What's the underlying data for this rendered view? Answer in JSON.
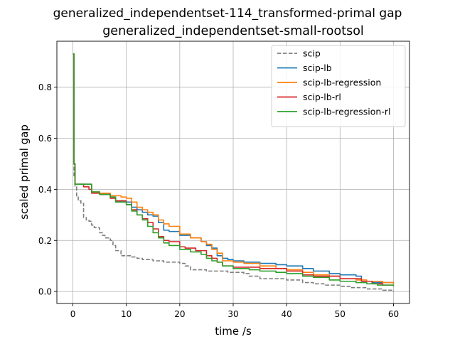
{
  "figure": {
    "suptitle": "generalized_independentset-114_transformed-primal gap"
  },
  "chart_data": {
    "type": "line",
    "title": "generalized_independentset-small-rootsol",
    "xlabel": "time /s",
    "ylabel": "scaled primal gap",
    "xlim": [
      -3.0,
      63.0
    ],
    "ylim": [
      -0.047,
      0.98
    ],
    "xticks": [
      0,
      10,
      20,
      30,
      40,
      50,
      60
    ],
    "xtick_labels": [
      "0",
      "10",
      "20",
      "30",
      "40",
      "50",
      "60"
    ],
    "yticks": [
      0.0,
      0.2,
      0.4,
      0.6,
      0.8
    ],
    "ytick_labels": [
      "0.0",
      "0.2",
      "0.4",
      "0.6",
      "0.8"
    ],
    "grid": true,
    "legend_position": "upper right",
    "series": [
      {
        "name": "scip",
        "color": "#7f7f7f",
        "dashed": true,
        "points": [
          [
            0,
            0.93
          ],
          [
            0.2,
            0.45
          ],
          [
            0.4,
            0.41
          ],
          [
            0.7,
            0.37
          ],
          [
            1,
            0.355
          ],
          [
            1.5,
            0.345
          ],
          [
            2,
            0.29
          ],
          [
            2.5,
            0.28
          ],
          [
            3,
            0.275
          ],
          [
            3.5,
            0.26
          ],
          [
            4,
            0.25
          ],
          [
            5,
            0.23
          ],
          [
            5.5,
            0.22
          ],
          [
            6,
            0.21
          ],
          [
            7,
            0.2
          ],
          [
            7.5,
            0.18
          ],
          [
            8,
            0.16
          ],
          [
            9,
            0.14
          ],
          [
            10,
            0.14
          ],
          [
            11,
            0.135
          ],
          [
            12,
            0.13
          ],
          [
            13,
            0.125
          ],
          [
            15,
            0.12
          ],
          [
            17,
            0.115
          ],
          [
            20,
            0.11
          ],
          [
            21,
            0.1
          ],
          [
            22,
            0.085
          ],
          [
            25,
            0.08
          ],
          [
            29,
            0.075
          ],
          [
            32,
            0.07
          ],
          [
            33,
            0.06
          ],
          [
            35,
            0.05
          ],
          [
            40,
            0.045
          ],
          [
            43,
            0.035
          ],
          [
            45,
            0.03
          ],
          [
            47,
            0.025
          ],
          [
            50,
            0.02
          ],
          [
            52,
            0.015
          ],
          [
            55,
            0.01
          ],
          [
            58,
            0.005
          ],
          [
            60,
            0.0
          ]
        ]
      },
      {
        "name": "scip-lb",
        "color": "#1f77b4",
        "dashed": false,
        "points": [
          [
            0,
            0.93
          ],
          [
            0.2,
            0.5
          ],
          [
            0.4,
            0.42
          ],
          [
            1,
            0.42
          ],
          [
            3,
            0.42
          ],
          [
            3.5,
            0.39
          ],
          [
            5,
            0.38
          ],
          [
            7,
            0.37
          ],
          [
            8,
            0.355
          ],
          [
            10,
            0.35
          ],
          [
            11,
            0.33
          ],
          [
            12,
            0.32
          ],
          [
            13,
            0.31
          ],
          [
            14,
            0.3
          ],
          [
            15,
            0.295
          ],
          [
            16,
            0.27
          ],
          [
            17,
            0.24
          ],
          [
            18,
            0.235
          ],
          [
            20,
            0.22
          ],
          [
            22,
            0.21
          ],
          [
            24,
            0.195
          ],
          [
            25,
            0.18
          ],
          [
            26,
            0.17
          ],
          [
            27,
            0.14
          ],
          [
            28,
            0.13
          ],
          [
            29,
            0.125
          ],
          [
            30,
            0.12
          ],
          [
            32,
            0.115
          ],
          [
            35,
            0.11
          ],
          [
            38,
            0.105
          ],
          [
            40,
            0.1
          ],
          [
            43,
            0.09
          ],
          [
            45,
            0.08
          ],
          [
            48,
            0.07
          ],
          [
            50,
            0.065
          ],
          [
            53,
            0.06
          ],
          [
            54,
            0.04
          ],
          [
            56,
            0.035
          ],
          [
            60,
            0.03
          ]
        ]
      },
      {
        "name": "scip-lb-regression",
        "color": "#ff7f0e",
        "dashed": false,
        "points": [
          [
            0,
            0.93
          ],
          [
            0.2,
            0.5
          ],
          [
            0.4,
            0.42
          ],
          [
            1,
            0.42
          ],
          [
            3,
            0.42
          ],
          [
            3.5,
            0.39
          ],
          [
            5,
            0.385
          ],
          [
            7,
            0.375
          ],
          [
            9,
            0.37
          ],
          [
            10,
            0.365
          ],
          [
            11,
            0.35
          ],
          [
            12,
            0.33
          ],
          [
            13,
            0.32
          ],
          [
            14,
            0.31
          ],
          [
            15,
            0.3
          ],
          [
            16,
            0.28
          ],
          [
            17,
            0.265
          ],
          [
            18,
            0.255
          ],
          [
            20,
            0.225
          ],
          [
            22,
            0.21
          ],
          [
            24,
            0.195
          ],
          [
            25,
            0.185
          ],
          [
            26,
            0.165
          ],
          [
            27,
            0.15
          ],
          [
            28,
            0.12
          ],
          [
            30,
            0.115
          ],
          [
            32,
            0.11
          ],
          [
            35,
            0.1
          ],
          [
            38,
            0.09
          ],
          [
            40,
            0.085
          ],
          [
            43,
            0.075
          ],
          [
            45,
            0.065
          ],
          [
            48,
            0.06
          ],
          [
            50,
            0.05
          ],
          [
            53,
            0.045
          ],
          [
            55,
            0.04
          ],
          [
            58,
            0.035
          ],
          [
            60,
            0.03
          ]
        ]
      },
      {
        "name": "scip-lb-rl",
        "color": "#d62728",
        "dashed": false,
        "points": [
          [
            0,
            0.93
          ],
          [
            0.2,
            0.5
          ],
          [
            0.4,
            0.42
          ],
          [
            1,
            0.42
          ],
          [
            2,
            0.41
          ],
          [
            3,
            0.4
          ],
          [
            3.5,
            0.385
          ],
          [
            5,
            0.38
          ],
          [
            7,
            0.365
          ],
          [
            8,
            0.355
          ],
          [
            10,
            0.34
          ],
          [
            11,
            0.32
          ],
          [
            12,
            0.3
          ],
          [
            13,
            0.285
          ],
          [
            14,
            0.27
          ],
          [
            15,
            0.245
          ],
          [
            16,
            0.215
          ],
          [
            17,
            0.2
          ],
          [
            18,
            0.195
          ],
          [
            20,
            0.175
          ],
          [
            21,
            0.17
          ],
          [
            23,
            0.16
          ],
          [
            25,
            0.14
          ],
          [
            26,
            0.13
          ],
          [
            27,
            0.115
          ],
          [
            28,
            0.1
          ],
          [
            30,
            0.095
          ],
          [
            35,
            0.09
          ],
          [
            40,
            0.08
          ],
          [
            43,
            0.065
          ],
          [
            45,
            0.06
          ],
          [
            50,
            0.05
          ],
          [
            54,
            0.04
          ],
          [
            56,
            0.03
          ],
          [
            58,
            0.025
          ],
          [
            60,
            0.025
          ]
        ]
      },
      {
        "name": "scip-lb-regression-rl",
        "color": "#2ca02c",
        "dashed": false,
        "points": [
          [
            0,
            0.93
          ],
          [
            0.2,
            0.5
          ],
          [
            0.4,
            0.42
          ],
          [
            1,
            0.42
          ],
          [
            3,
            0.42
          ],
          [
            3.5,
            0.39
          ],
          [
            5,
            0.38
          ],
          [
            7,
            0.37
          ],
          [
            8,
            0.35
          ],
          [
            10,
            0.34
          ],
          [
            11,
            0.315
          ],
          [
            12,
            0.3
          ],
          [
            13,
            0.28
          ],
          [
            14,
            0.255
          ],
          [
            15,
            0.23
          ],
          [
            16,
            0.21
          ],
          [
            17,
            0.19
          ],
          [
            18,
            0.18
          ],
          [
            20,
            0.165
          ],
          [
            22,
            0.155
          ],
          [
            24,
            0.145
          ],
          [
            25,
            0.13
          ],
          [
            26,
            0.12
          ],
          [
            27,
            0.115
          ],
          [
            28,
            0.1
          ],
          [
            30,
            0.09
          ],
          [
            33,
            0.085
          ],
          [
            35,
            0.08
          ],
          [
            38,
            0.075
          ],
          [
            40,
            0.07
          ],
          [
            43,
            0.06
          ],
          [
            45,
            0.055
          ],
          [
            48,
            0.045
          ],
          [
            50,
            0.04
          ],
          [
            53,
            0.035
          ],
          [
            55,
            0.03
          ],
          [
            57,
            0.025
          ],
          [
            60,
            0.02
          ]
        ]
      }
    ]
  }
}
